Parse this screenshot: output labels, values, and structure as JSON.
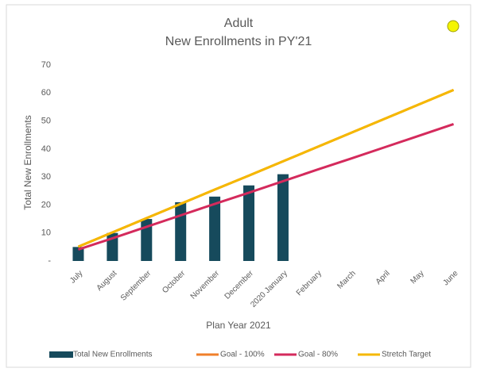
{
  "chart_data": {
    "type": "bar",
    "title": "Adult",
    "subtitle": "New Enrollments in PY'21",
    "x_label": "Plan Year 2021",
    "y_label": "Total New Enrollments",
    "categories": [
      "July",
      "August",
      "September",
      "October",
      "November",
      "December",
      "2020 January",
      "February",
      "March",
      "April",
      "May",
      "June"
    ],
    "series": [
      {
        "name": "Total New Enrollments",
        "type": "bar",
        "color": "#164a5c",
        "values": [
          5,
          10,
          15,
          21,
          23,
          27,
          31,
          null,
          null,
          null,
          null,
          null
        ]
      },
      {
        "name": "Goal - 100%",
        "type": "line",
        "color": "#f07f2a",
        "values": [
          5.1,
          10.2,
          15.3,
          20.4,
          25.5,
          30.5,
          35.6,
          40.7,
          45.8,
          50.9,
          56.0,
          61.1
        ]
      },
      {
        "name": "Goal - 80%",
        "type": "line",
        "color": "#d42a5c",
        "values": [
          4.1,
          8.1,
          12.2,
          16.3,
          20.4,
          24.4,
          28.5,
          32.6,
          36.6,
          40.7,
          44.8,
          48.9
        ]
      },
      {
        "name": "Stretch Target",
        "type": "line",
        "color": "#f5b800",
        "values": [
          5.1,
          10.2,
          15.3,
          20.4,
          25.5,
          30.5,
          35.6,
          40.7,
          45.8,
          50.9,
          56.0,
          61.1
        ]
      }
    ],
    "ylim": [
      0,
      70
    ],
    "yticks": [
      {
        "value": 0,
        "label": "-"
      },
      10,
      20,
      30,
      40,
      50,
      60,
      70
    ],
    "grid": false,
    "legend": "bottom"
  }
}
